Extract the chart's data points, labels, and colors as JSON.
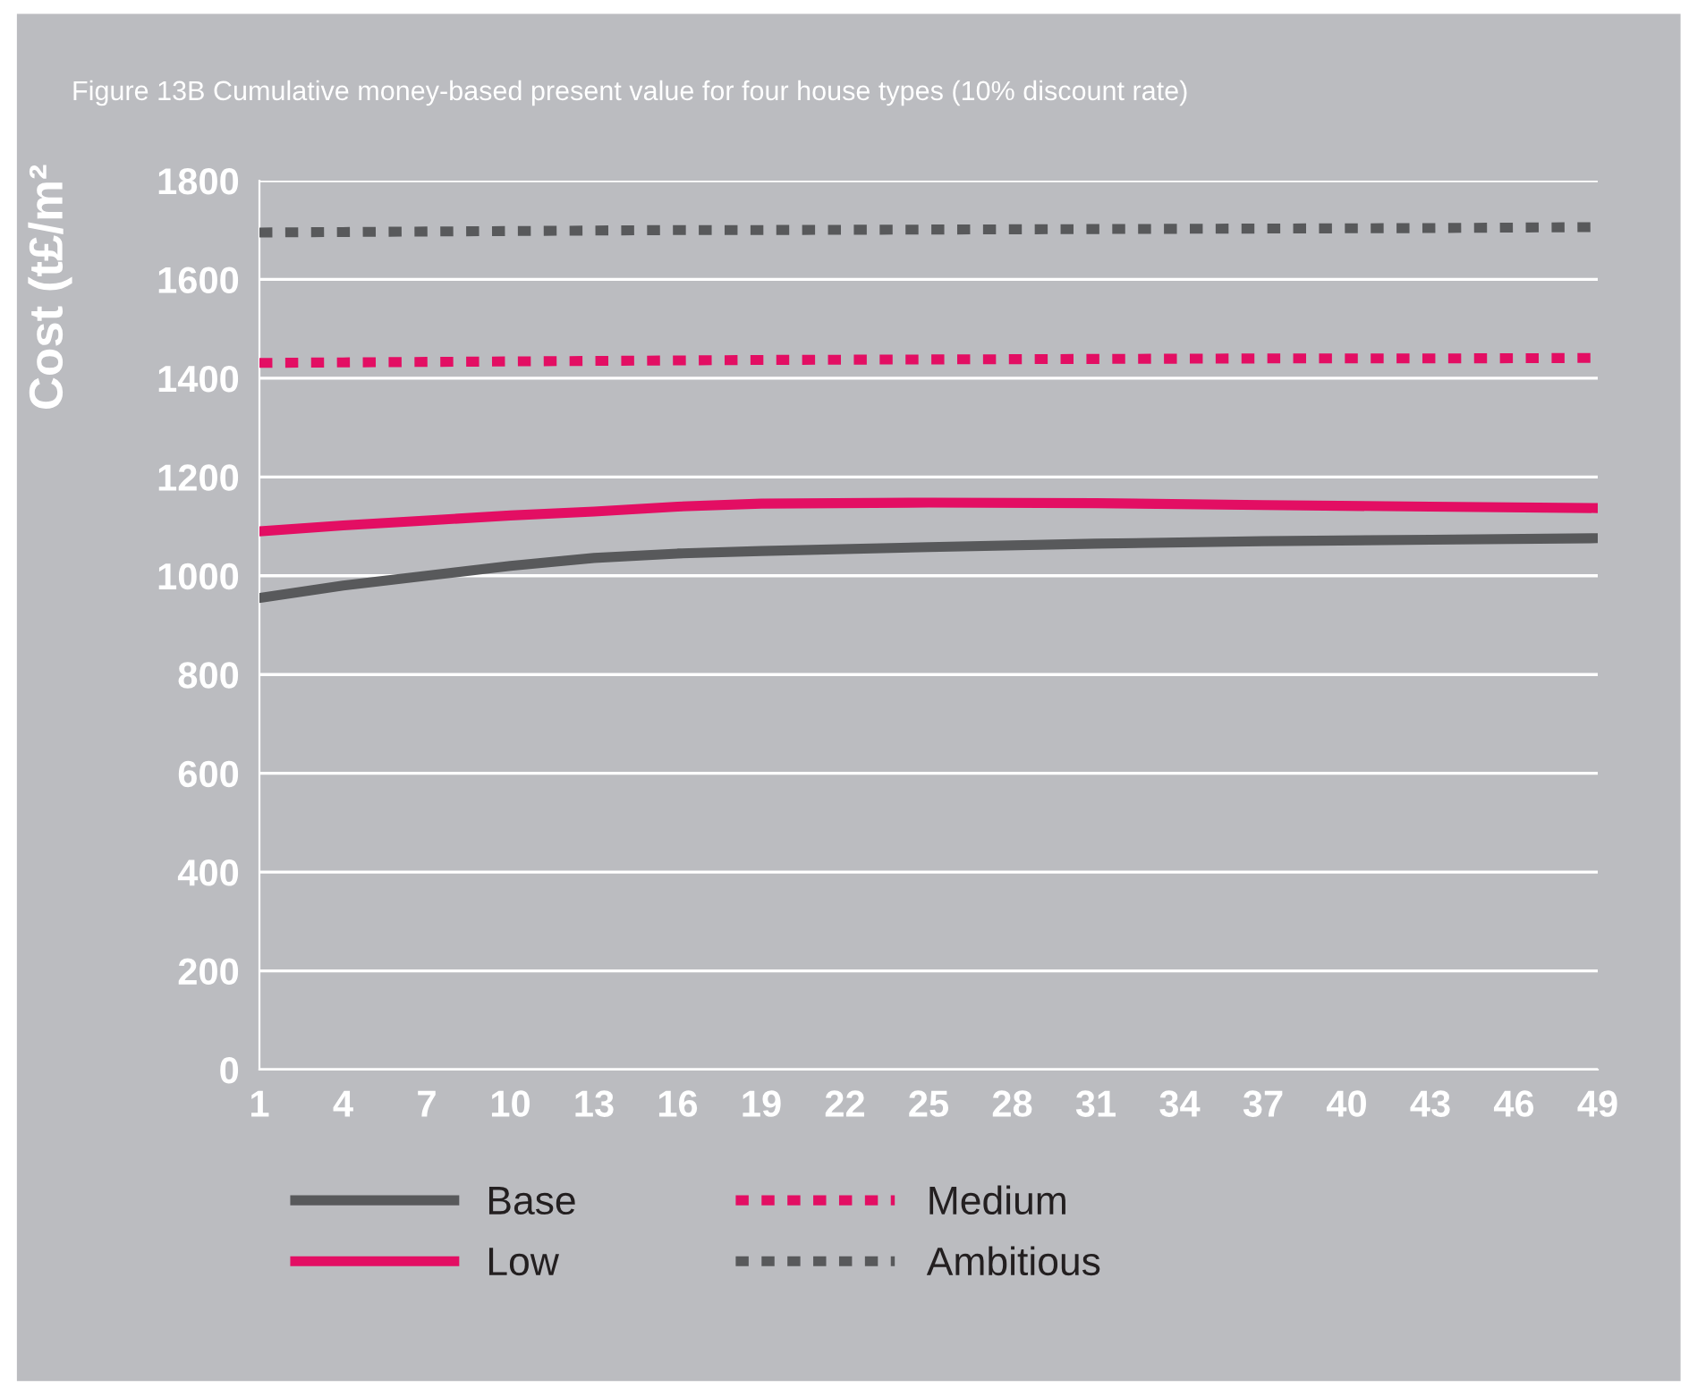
{
  "chart_data": {
    "type": "line",
    "title": "Figure 13B Cumulative money-based present value for four house types (10% discount rate)",
    "ylabel": "Cost (t£/m²",
    "x": [
      1,
      4,
      7,
      10,
      13,
      16,
      19,
      25,
      31,
      37,
      43,
      49
    ],
    "series": [
      {
        "name": "Base",
        "color": "#58595b",
        "line_style": "solid",
        "values": [
          955,
          980,
          1000,
          1020,
          1036,
          1045,
          1050,
          1058,
          1065,
          1070,
          1073,
          1076
        ]
      },
      {
        "name": "Low",
        "color": "#e30e63",
        "line_style": "solid",
        "values": [
          1090,
          1102,
          1112,
          1122,
          1130,
          1140,
          1146,
          1148,
          1147,
          1143,
          1140,
          1137
        ]
      },
      {
        "name": "Medium",
        "color": "#e30e63",
        "line_style": "dotted",
        "values": [
          1431,
          1432,
          1433,
          1434,
          1435,
          1436,
          1437,
          1438,
          1439,
          1440,
          1440,
          1441
        ]
      },
      {
        "name": "Ambitious",
        "color": "#58595b",
        "line_style": "dotted",
        "values": [
          1695,
          1696,
          1697,
          1698,
          1699,
          1700,
          1700,
          1701,
          1702,
          1703,
          1704,
          1706
        ]
      }
    ],
    "xlim": [
      1,
      49
    ],
    "xticks": [
      1,
      4,
      7,
      10,
      13,
      16,
      19,
      22,
      25,
      28,
      31,
      34,
      37,
      40,
      43,
      46,
      49
    ],
    "ylim": [
      0,
      1800
    ],
    "yticks": [
      0,
      200,
      400,
      600,
      800,
      1000,
      1200,
      1400,
      1600,
      1800
    ],
    "grid": "y",
    "legend": "bottom",
    "marker": "none"
  }
}
